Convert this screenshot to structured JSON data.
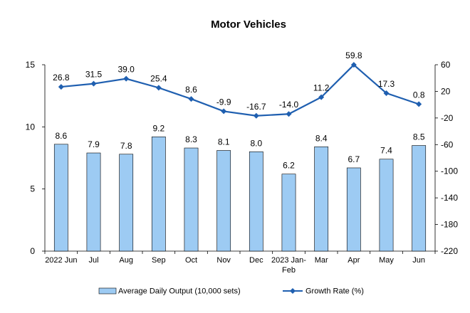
{
  "chart_data": {
    "type": "bar+line",
    "title": "Motor Vehicles",
    "categories": [
      "2022 Jun",
      "Jul",
      "Aug",
      "Sep",
      "Oct",
      "Nov",
      "Dec",
      "2023 Jan-Feb",
      "Mar",
      "Apr",
      "May",
      "Jun"
    ],
    "series": [
      {
        "name": "Average Daily Output (10,000 sets)",
        "type": "bar",
        "axis": "left",
        "values": [
          8.6,
          7.9,
          7.8,
          9.2,
          8.3,
          8.1,
          8.0,
          6.2,
          8.4,
          6.7,
          7.4,
          8.5
        ],
        "labels": [
          "8.6",
          "7.9",
          "7.8",
          "9.2",
          "8.3",
          "8.1",
          "8.0",
          "6.2",
          "8.4",
          "6.7",
          "7.4",
          "8.5"
        ]
      },
      {
        "name": "Growth Rate (%)",
        "type": "line",
        "axis": "right",
        "values": [
          26.8,
          31.5,
          39.0,
          25.4,
          8.6,
          -9.9,
          -16.7,
          -14.0,
          11.2,
          59.8,
          17.3,
          0.8
        ],
        "labels": [
          "26.8",
          "31.5",
          "39.0",
          "25.4",
          "8.6",
          "-9.9",
          "-16.7",
          "-14.0",
          "11.2",
          "59.8",
          "17.3",
          "0.8"
        ]
      }
    ],
    "y_left": {
      "min": 0,
      "max": 15,
      "ticks": [
        0,
        5,
        10,
        15
      ]
    },
    "y_right": {
      "min": -220,
      "max": 60,
      "ticks": [
        60,
        20,
        -20,
        -60,
        -100,
        -140,
        -180,
        -220
      ]
    },
    "grid": false,
    "legend_position": "bottom",
    "colors": {
      "bar_fill": "#9DCBF3",
      "bar_stroke": "#000000",
      "line": "#1F5FB0"
    }
  }
}
